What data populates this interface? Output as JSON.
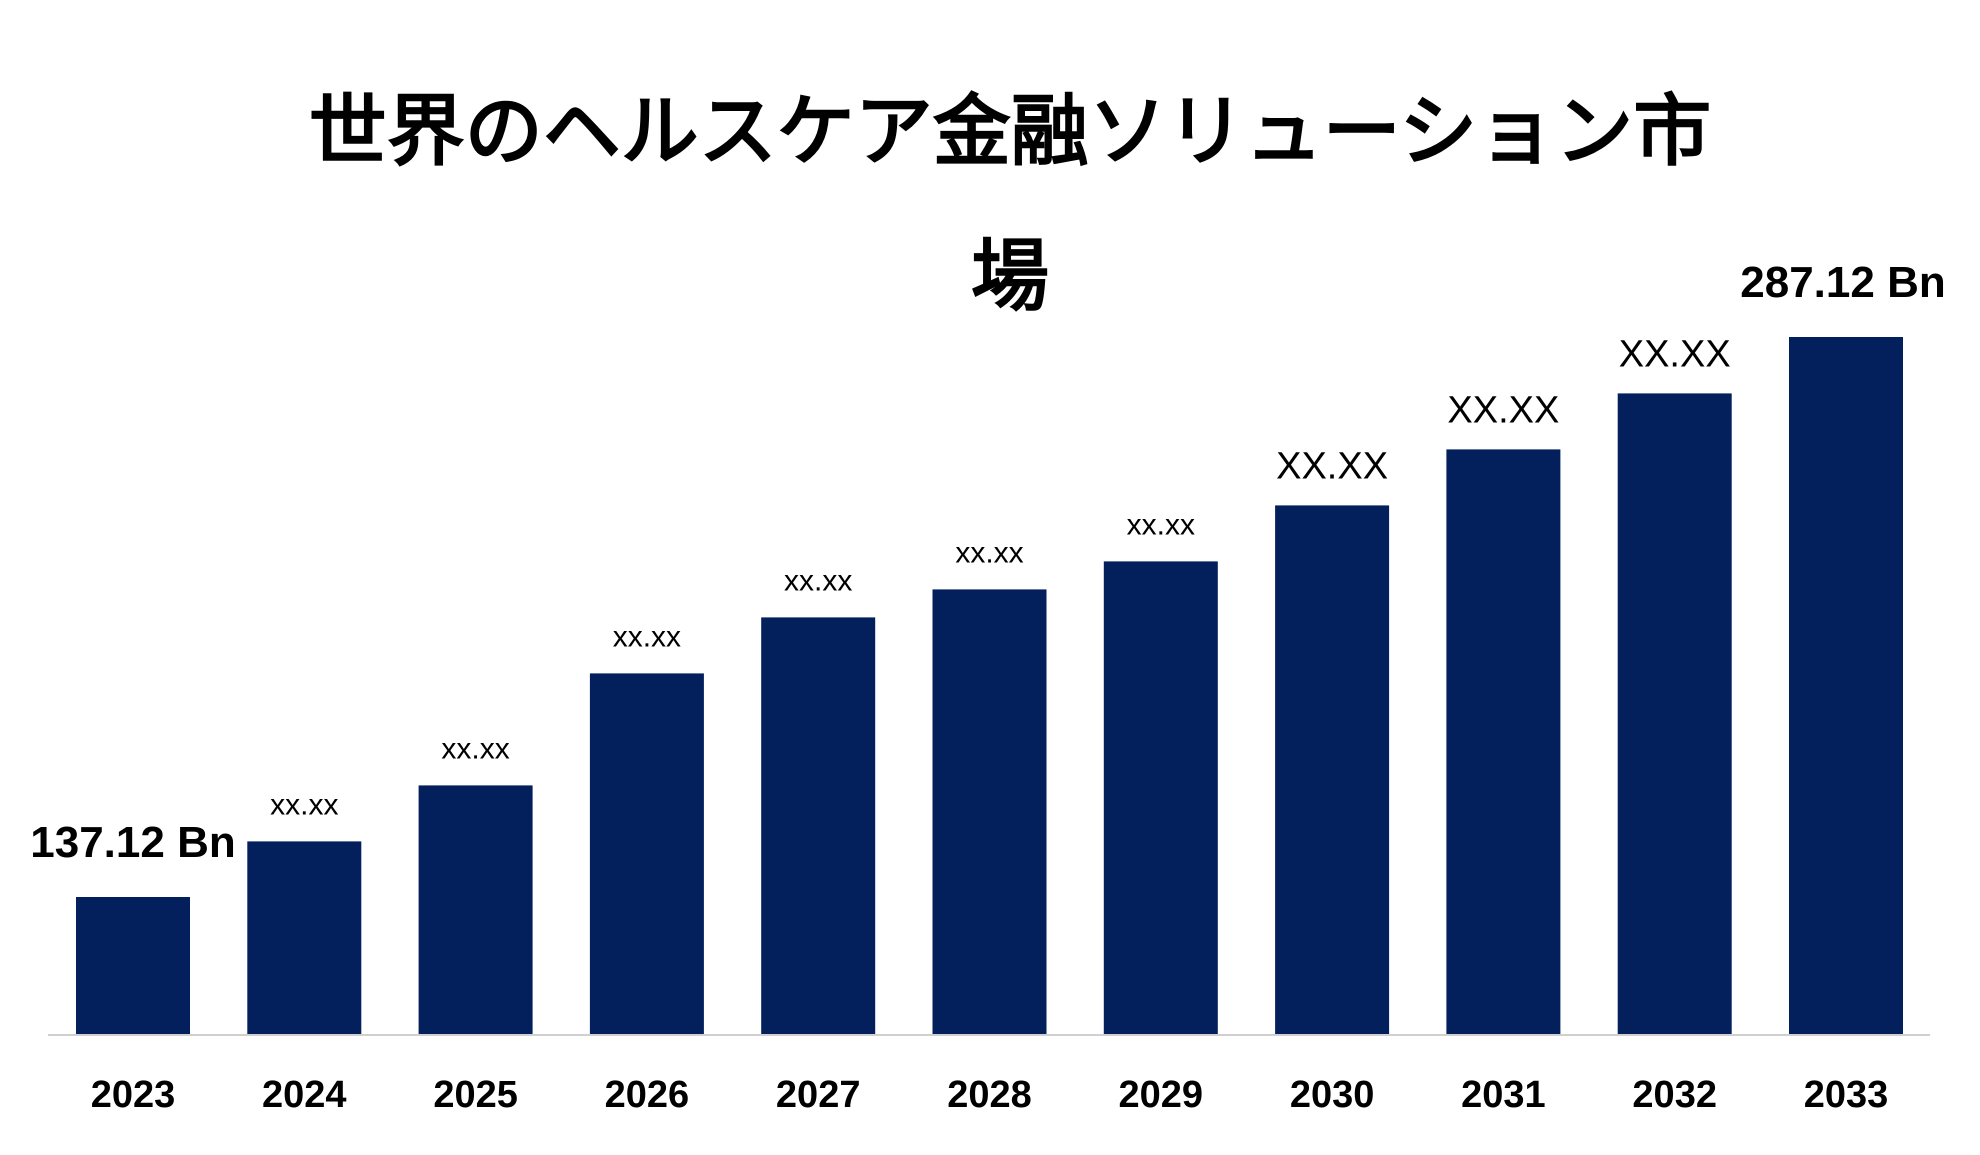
{
  "chart_data": {
    "type": "bar",
    "title": "世界のヘルスケア金融ソリューション市場",
    "categories": [
      "2023",
      "2024",
      "2025",
      "2026",
      "2027",
      "2028",
      "2029",
      "2030",
      "2031",
      "2032",
      "2033"
    ],
    "values": [
      137.12,
      152.0,
      167.0,
      197.0,
      212.0,
      219.5,
      227.0,
      242.0,
      257.0,
      272.0,
      287.12
    ],
    "data_labels": [
      "137.12 Bn",
      "xx.xx",
      "xx.xx",
      "xx.xx",
      "xx.xx",
      "xx.xx",
      "xx.xx",
      "XX.XX",
      "XX.XX",
      "XX.XX",
      "287.12 Bn"
    ],
    "ylim": [
      100,
      300
    ],
    "bar_color": "#03205C",
    "axis_color": "#D0D0D0",
    "grid": false,
    "legend": "none",
    "xlabel": "",
    "ylabel": ""
  }
}
